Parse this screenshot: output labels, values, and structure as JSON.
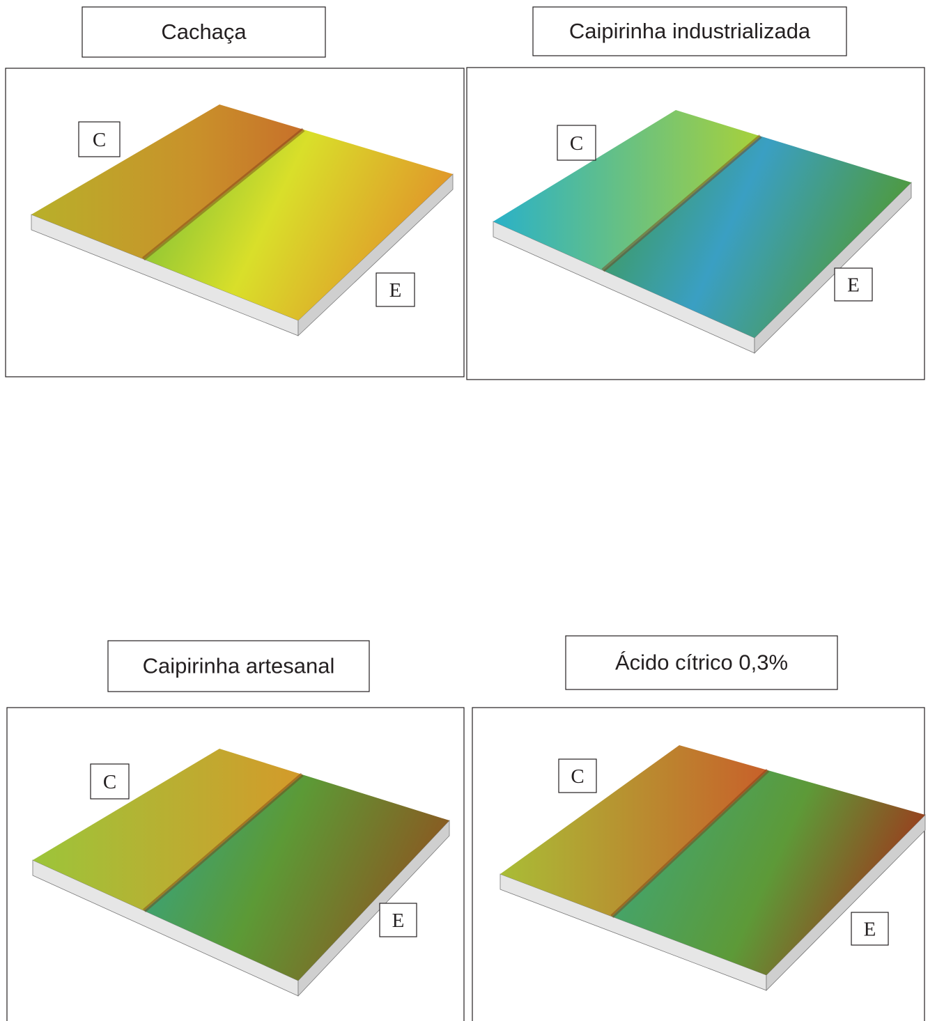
{
  "panels": [
    {
      "title": "Cachaça",
      "markers": [
        "C",
        "E"
      ]
    },
    {
      "title": "Caipirinha industrializada",
      "markers": [
        "C",
        "E"
      ]
    },
    {
      "title": "Caipirinha artesanal",
      "markers": [
        "C",
        "E"
      ]
    },
    {
      "title": "Ácido cítrico 0,3%",
      "markers": [
        "C",
        "E"
      ]
    }
  ]
}
